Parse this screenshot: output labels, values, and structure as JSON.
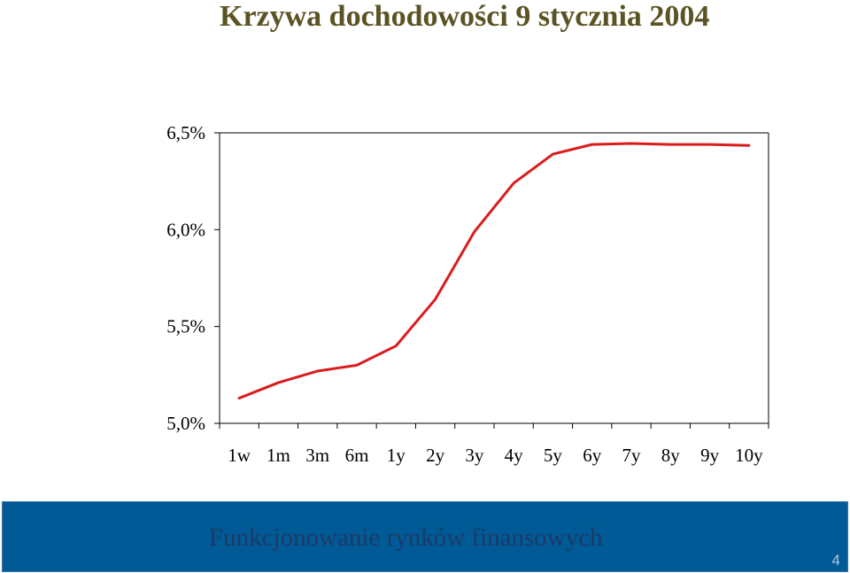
{
  "slide": {
    "title": "Krzywa dochodowości 9 stycznia 2004"
  },
  "footer": {
    "text": "Funkcjonowanie rynków finansowych",
    "page_number": "4"
  },
  "colors": {
    "title": "#5b5323",
    "line": "#d91c1c",
    "footer_bar": "#005a96",
    "footer_text": "#1b3a66"
  },
  "chart_data": {
    "type": "line",
    "title": "",
    "xlabel": "",
    "ylabel": "",
    "categories": [
      "1w",
      "1m",
      "3m",
      "6m",
      "1y",
      "2y",
      "3y",
      "4y",
      "5y",
      "6y",
      "7y",
      "8y",
      "9y",
      "10y"
    ],
    "series": [
      {
        "values": [
          5.13,
          5.21,
          5.27,
          5.3,
          5.4,
          5.64,
          5.99,
          6.24,
          6.39,
          6.44,
          6.445,
          6.44,
          6.44,
          6.435
        ]
      }
    ],
    "ylim": [
      5.0,
      6.5
    ],
    "y_ticks": [
      {
        "value": 5.0,
        "label": "5,0%"
      },
      {
        "value": 5.5,
        "label": "5,5%"
      },
      {
        "value": 6.0,
        "label": "6,0%"
      },
      {
        "value": 6.5,
        "label": "6,5%"
      }
    ],
    "grid": false,
    "legend": "none"
  }
}
